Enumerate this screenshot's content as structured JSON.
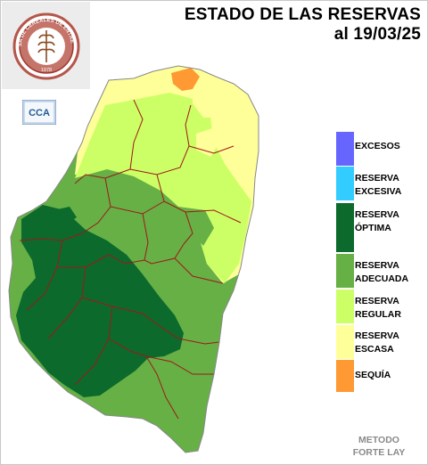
{
  "header": {
    "title": "ESTADO DE LAS RESERVAS",
    "date": "al 19/03/25"
  },
  "logo": {
    "ring_text": "BOLSA DE CEREALES DE ENTRE RIOS",
    "year": "1978",
    "badge_text": "CCA"
  },
  "legend": {
    "items": [
      {
        "label": "EXCESOS",
        "color": "#6666ff"
      },
      {
        "label": "RESERVA\nEXCESIVA",
        "color": "#33ccff"
      },
      {
        "label": "RESERVA\nÓPTIMA",
        "color": "#0c6a2c"
      },
      {
        "label": "RESERVA\nADECUADA",
        "color": "#66b046"
      },
      {
        "label": "RESERVA\nREGULAR",
        "color": "#ccff66"
      },
      {
        "label": "RESERVA\nESCASA",
        "color": "#ffff99"
      },
      {
        "label": "SEQUÍA",
        "color": "#ff9933"
      }
    ]
  },
  "footer": {
    "method": "METODO\nFORTE LAY"
  },
  "colors": {
    "department_borders": "#a01818",
    "province_outline": "#888888"
  }
}
